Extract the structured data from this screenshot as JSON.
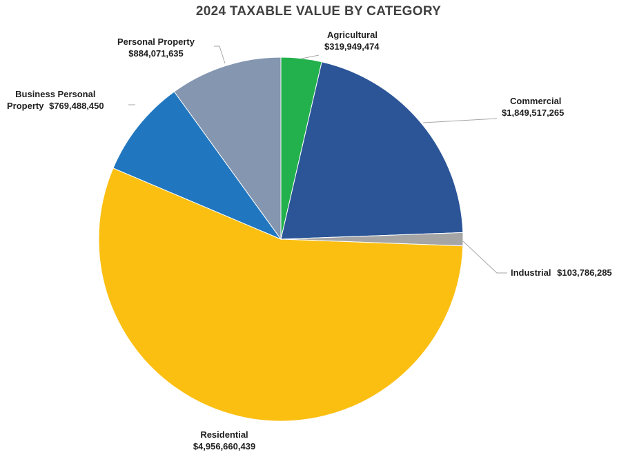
{
  "chart_data": {
    "type": "pie",
    "title": "2024 TAXABLE VALUE BY CATEGORY",
    "slices": [
      {
        "name": "Agricultural",
        "value": 319949474,
        "value_label": "$319,949,474",
        "color": "#22b14c"
      },
      {
        "name": "Commercial",
        "value": 1849517265,
        "value_label": "$1,849,517,265",
        "color": "#2b5597"
      },
      {
        "name": "Industrial",
        "value": 103786285,
        "value_label": "$103,786,285",
        "color": "#a5a5a5"
      },
      {
        "name": "Residential",
        "value": 4956660439,
        "value_label": "$4,956,660,439",
        "color": "#fbbf12"
      },
      {
        "name": "Business Personal Property",
        "value": 769488450,
        "value_label": "$769,488,450",
        "color": "#2177bf"
      },
      {
        "name": "Personal Property",
        "value": 884071635,
        "value_label": "$884,071,635",
        "color": "#8496b0"
      }
    ],
    "start_angle": "12 o'clock",
    "direction": "clockwise",
    "legend": "none",
    "data_labels": "outside with leader lines"
  },
  "labels": {
    "agricultural": {
      "name": "Agricultural",
      "value": "$319,949,474"
    },
    "commercial": {
      "name": "Commercial",
      "value": "$1,849,517,265"
    },
    "industrial": {
      "name": "Industrial",
      "value": "$103,786,285"
    },
    "residential": {
      "name": "Residential",
      "value": "$4,956,660,439"
    },
    "business": {
      "name_line1": "Business Personal",
      "name_line2": "Property",
      "value": "$769,488,450"
    },
    "personal": {
      "name": "Personal Property",
      "value": "$884,071,635"
    }
  }
}
